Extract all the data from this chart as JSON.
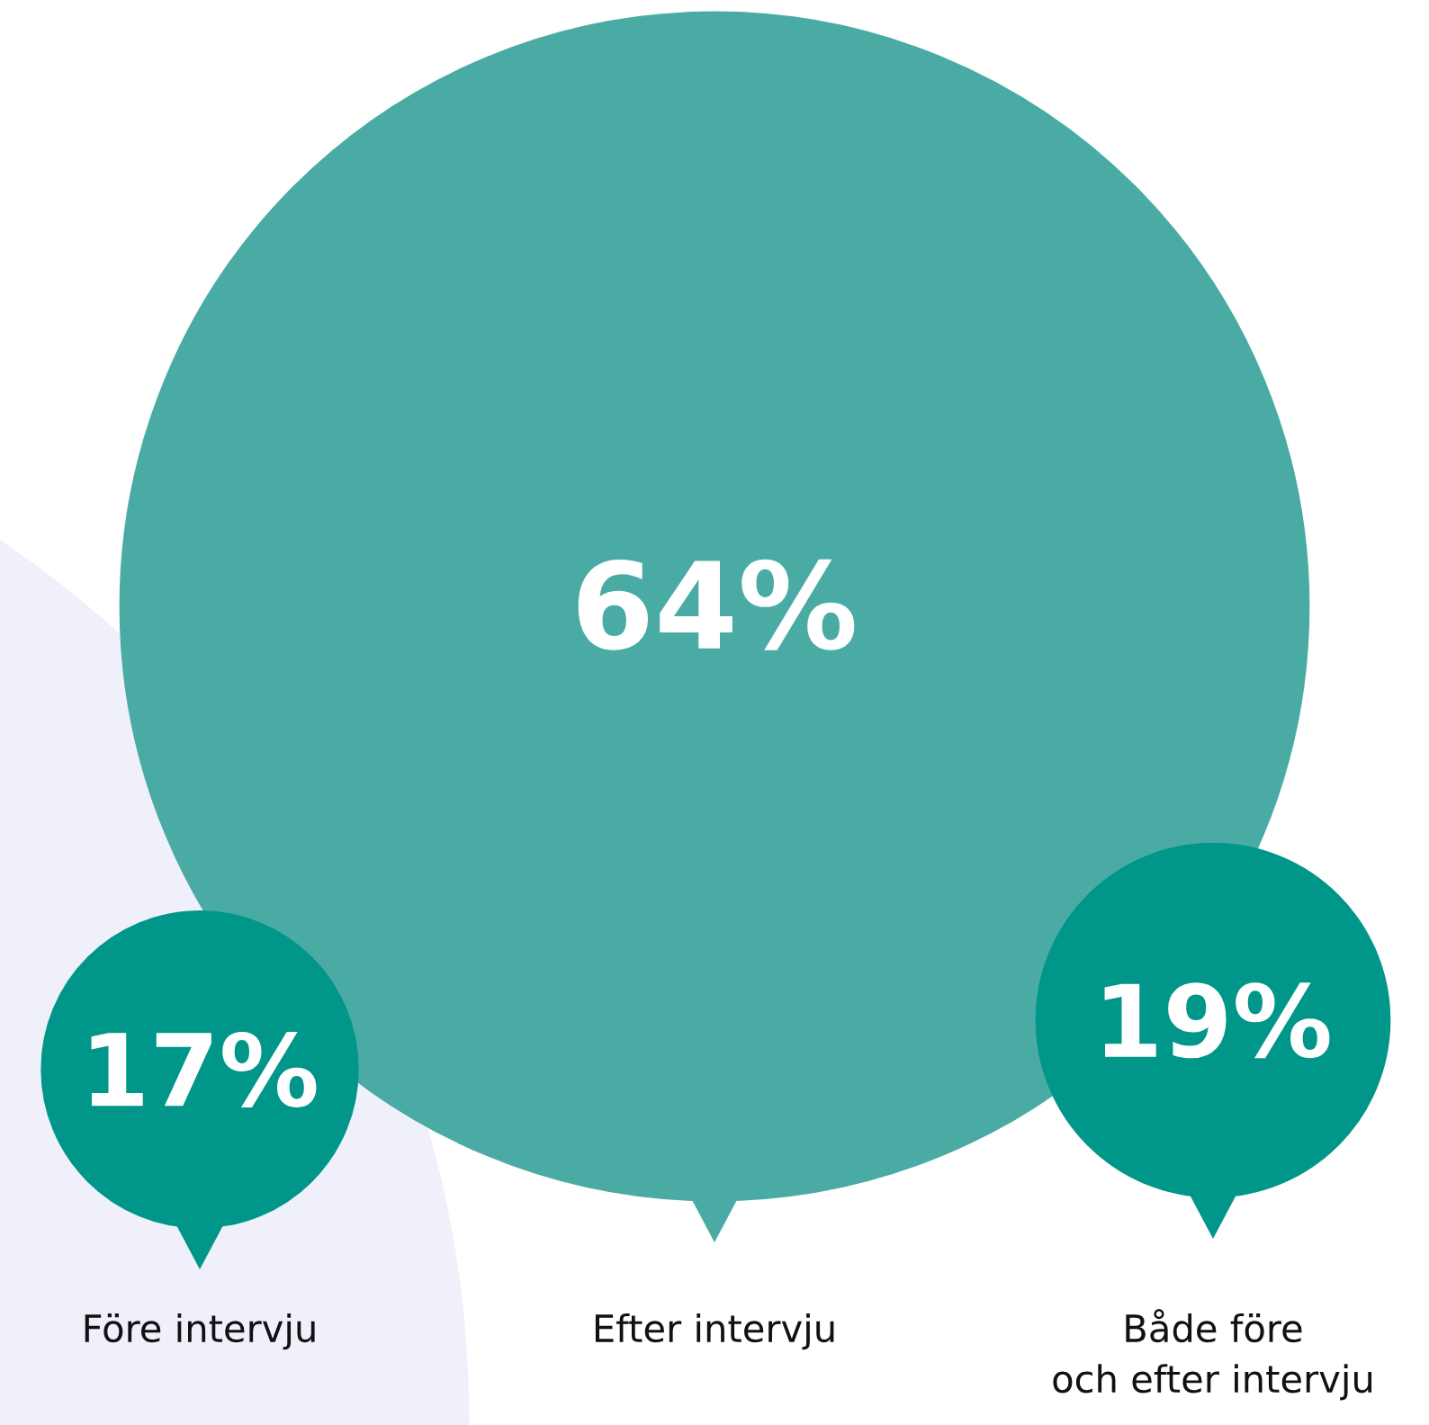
{
  "chart_data": {
    "type": "other",
    "categories": [
      "Före intervju",
      "Efter intervju",
      "Både före\noch efter intervju"
    ],
    "values": [
      17,
      64,
      19
    ],
    "value_labels": [
      "17%",
      "64%",
      "19%"
    ],
    "colors": [
      "#00968a",
      "#4aaba5",
      "#00968a"
    ]
  }
}
